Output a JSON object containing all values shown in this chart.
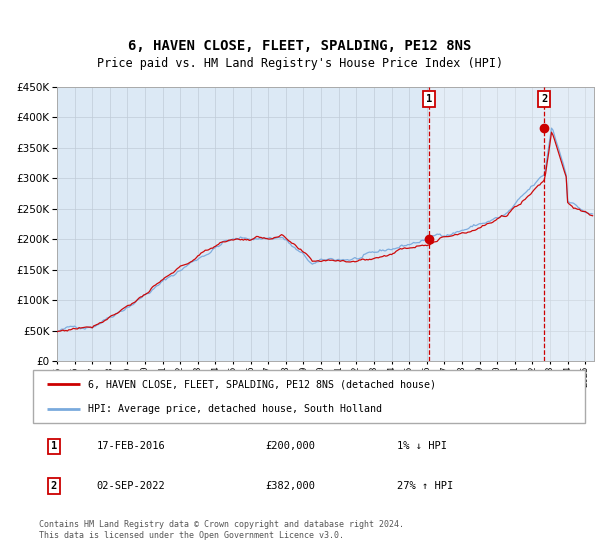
{
  "title": "6, HAVEN CLOSE, FLEET, SPALDING, PE12 8NS",
  "subtitle": "Price paid vs. HM Land Registry's House Price Index (HPI)",
  "sale1_date": "17-FEB-2016",
  "sale1_price": 200000,
  "sale1_label": "1",
  "sale1_year": 2016.12,
  "sale1_pct": "1% ↓ HPI",
  "sale2_date": "02-SEP-2022",
  "sale2_price": 382000,
  "sale2_label": "2",
  "sale2_year": 2022.67,
  "sale2_pct": "27% ↑ HPI",
  "legend_line1": "6, HAVEN CLOSE, FLEET, SPALDING, PE12 8NS (detached house)",
  "legend_line2": "HPI: Average price, detached house, South Holland",
  "footer": "Contains HM Land Registry data © Crown copyright and database right 2024.\nThis data is licensed under the Open Government Licence v3.0.",
  "hpi_color": "#7aaadd",
  "price_color": "#cc0000",
  "bg_color": "#dce9f5",
  "grid_color": "#c0ccd8",
  "vline_color": "#cc0000",
  "ylim": [
    0,
    450000
  ],
  "xlim_start": 1995.0,
  "xlim_end": 2025.5,
  "title_fontsize": 10,
  "subtitle_fontsize": 8.5
}
